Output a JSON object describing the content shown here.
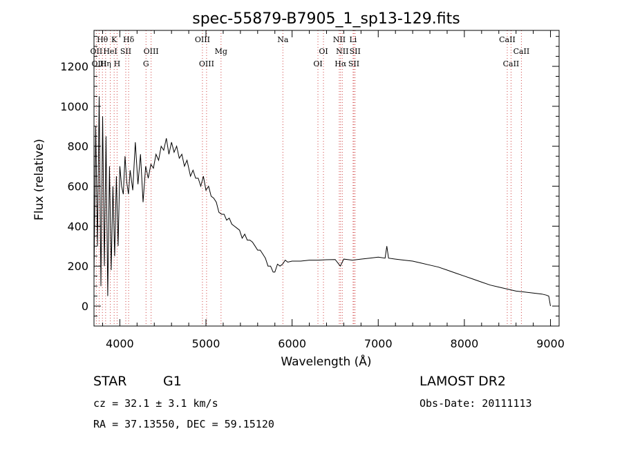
{
  "chart_data": {
    "type": "line",
    "title": "spec-55879-B7905_1_sp13-129.fits",
    "xlabel": "Wavelength (Å)",
    "ylabel": "Flux (relative)",
    "xlim": [
      3700,
      9100
    ],
    "ylim": [
      -100,
      1380
    ],
    "xticks": [
      4000,
      5000,
      6000,
      7000,
      8000,
      9000
    ],
    "yticks": [
      0,
      200,
      400,
      600,
      800,
      1000,
      1200
    ],
    "grid": false,
    "series": [
      {
        "x": [
          3700,
          3720,
          3740,
          3760,
          3780,
          3800,
          3820,
          3840,
          3860,
          3880,
          3900,
          3920,
          3940,
          3960,
          3980,
          4000,
          4020,
          4040,
          4060,
          4080,
          4100,
          4120,
          4150,
          4180,
          4210,
          4240,
          4270,
          4300,
          4330,
          4360,
          4390,
          4420,
          4450,
          4480,
          4510,
          4540,
          4570,
          4600,
          4630,
          4660,
          4690,
          4720,
          4750,
          4780,
          4800,
          4820,
          4850,
          4880,
          4910,
          4940,
          4970,
          5000,
          5030,
          5060,
          5090,
          5120,
          5150,
          5180,
          5210,
          5240,
          5270,
          5300,
          5330,
          5360,
          5390,
          5420,
          5450,
          5480,
          5510,
          5540,
          5570,
          5600,
          5630,
          5660,
          5690,
          5720,
          5750,
          5780,
          5800,
          5830,
          5860,
          5890,
          5920,
          5950,
          6000,
          6100,
          6200,
          6300,
          6400,
          6500,
          6560,
          6600,
          6700,
          6800,
          6900,
          7000,
          7080,
          7100,
          7120,
          7200,
          7300,
          7400,
          7500,
          7600,
          7700,
          7800,
          7900,
          8000,
          8100,
          8200,
          8300,
          8400,
          8500,
          8600,
          8700,
          8800,
          8900,
          8950,
          8980,
          9000
        ],
        "y": [
          150,
          900,
          300,
          1050,
          100,
          950,
          200,
          850,
          50,
          700,
          180,
          600,
          250,
          650,
          300,
          700,
          600,
          560,
          750,
          620,
          560,
          680,
          580,
          820,
          610,
          760,
          520,
          700,
          640,
          710,
          690,
          760,
          730,
          800,
          780,
          840,
          760,
          820,
          770,
          800,
          740,
          760,
          700,
          730,
          690,
          650,
          680,
          640,
          640,
          600,
          650,
          580,
          600,
          550,
          540,
          520,
          470,
          460,
          460,
          430,
          440,
          410,
          400,
          390,
          380,
          340,
          360,
          330,
          330,
          320,
          300,
          280,
          280,
          260,
          240,
          200,
          200,
          170,
          170,
          210,
          200,
          210,
          230,
          220,
          225,
          225,
          230,
          230,
          232,
          233,
          200,
          235,
          230,
          235,
          240,
          245,
          240,
          300,
          240,
          235,
          230,
          225,
          215,
          205,
          195,
          180,
          165,
          150,
          135,
          120,
          105,
          95,
          85,
          75,
          70,
          65,
          60,
          55,
          50,
          0
        ]
      }
    ],
    "spectral_lines": [
      {
        "label": "Hθ",
        "x": 3798,
        "row": 0
      },
      {
        "label": "K",
        "x": 3934,
        "row": 0
      },
      {
        "label": "Hδ",
        "x": 4102,
        "row": 0
      },
      {
        "label": "OIII",
        "x": 4959,
        "row": 0
      },
      {
        "label": "Na",
        "x": 5893,
        "row": 0
      },
      {
        "label": "NII",
        "x": 6548,
        "row": 0
      },
      {
        "label": "Li",
        "x": 6708,
        "row": 0
      },
      {
        "label": "CaII",
        "x": 8498,
        "row": 0
      },
      {
        "label": "OII",
        "x": 3727,
        "row": 1
      },
      {
        "label": "HeI",
        "x": 3889,
        "row": 1
      },
      {
        "label": "SII",
        "x": 4069,
        "row": 1
      },
      {
        "label": "OIII",
        "x": 4363,
        "row": 1
      },
      {
        "label": "Mg",
        "x": 5175,
        "row": 1
      },
      {
        "label": "OI",
        "x": 6364,
        "row": 1
      },
      {
        "label": "NII",
        "x": 6583,
        "row": 1
      },
      {
        "label": "SII",
        "x": 6731,
        "row": 1
      },
      {
        "label": "CaII",
        "x": 8662,
        "row": 1
      },
      {
        "label": "OIII",
        "x": 3760,
        "row": 2
      },
      {
        "label": "Hη",
        "x": 3835,
        "row": 2
      },
      {
        "label": "H",
        "x": 3968,
        "row": 2
      },
      {
        "label": "G",
        "x": 4304,
        "row": 2
      },
      {
        "label": "OIII",
        "x": 5007,
        "row": 2
      },
      {
        "label": "OI",
        "x": 6300,
        "row": 2
      },
      {
        "label": "Hα",
        "x": 6563,
        "row": 2
      },
      {
        "label": "SII",
        "x": 6717,
        "row": 2
      },
      {
        "label": "CaII",
        "x": 8542,
        "row": 2
      }
    ]
  },
  "info": {
    "object_class": "STAR",
    "subclass": "G1",
    "survey": "LAMOST DR2",
    "redshift": "cz = 32.1 ± 3.1 km/s",
    "obs_date": "Obs-Date: 20111113",
    "coords": "RA =  37.13550, DEC =  59.15120"
  }
}
